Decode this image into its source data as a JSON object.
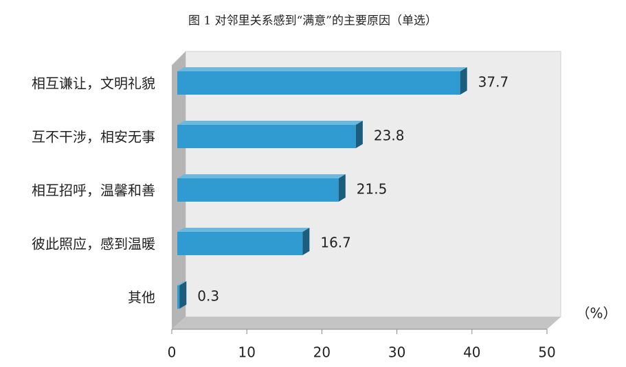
{
  "chart_data": {
    "type": "bar",
    "orientation": "horizontal",
    "title": "图 1 对邻里关系感到“满意”的主要原因（单选）",
    "xlabel": "（%）",
    "categories": [
      "相互谦让，文明礼貌",
      "互不干涉，相安无事",
      "相互招呼，温馨和善",
      "彼此照应，感到温暖",
      "其他"
    ],
    "values": [
      37.7,
      23.8,
      21.5,
      16.7,
      0.3
    ],
    "color": "#2f9bd0",
    "xlim": [
      0,
      50
    ],
    "xticks": [
      0,
      10,
      20,
      30,
      40,
      50
    ]
  }
}
